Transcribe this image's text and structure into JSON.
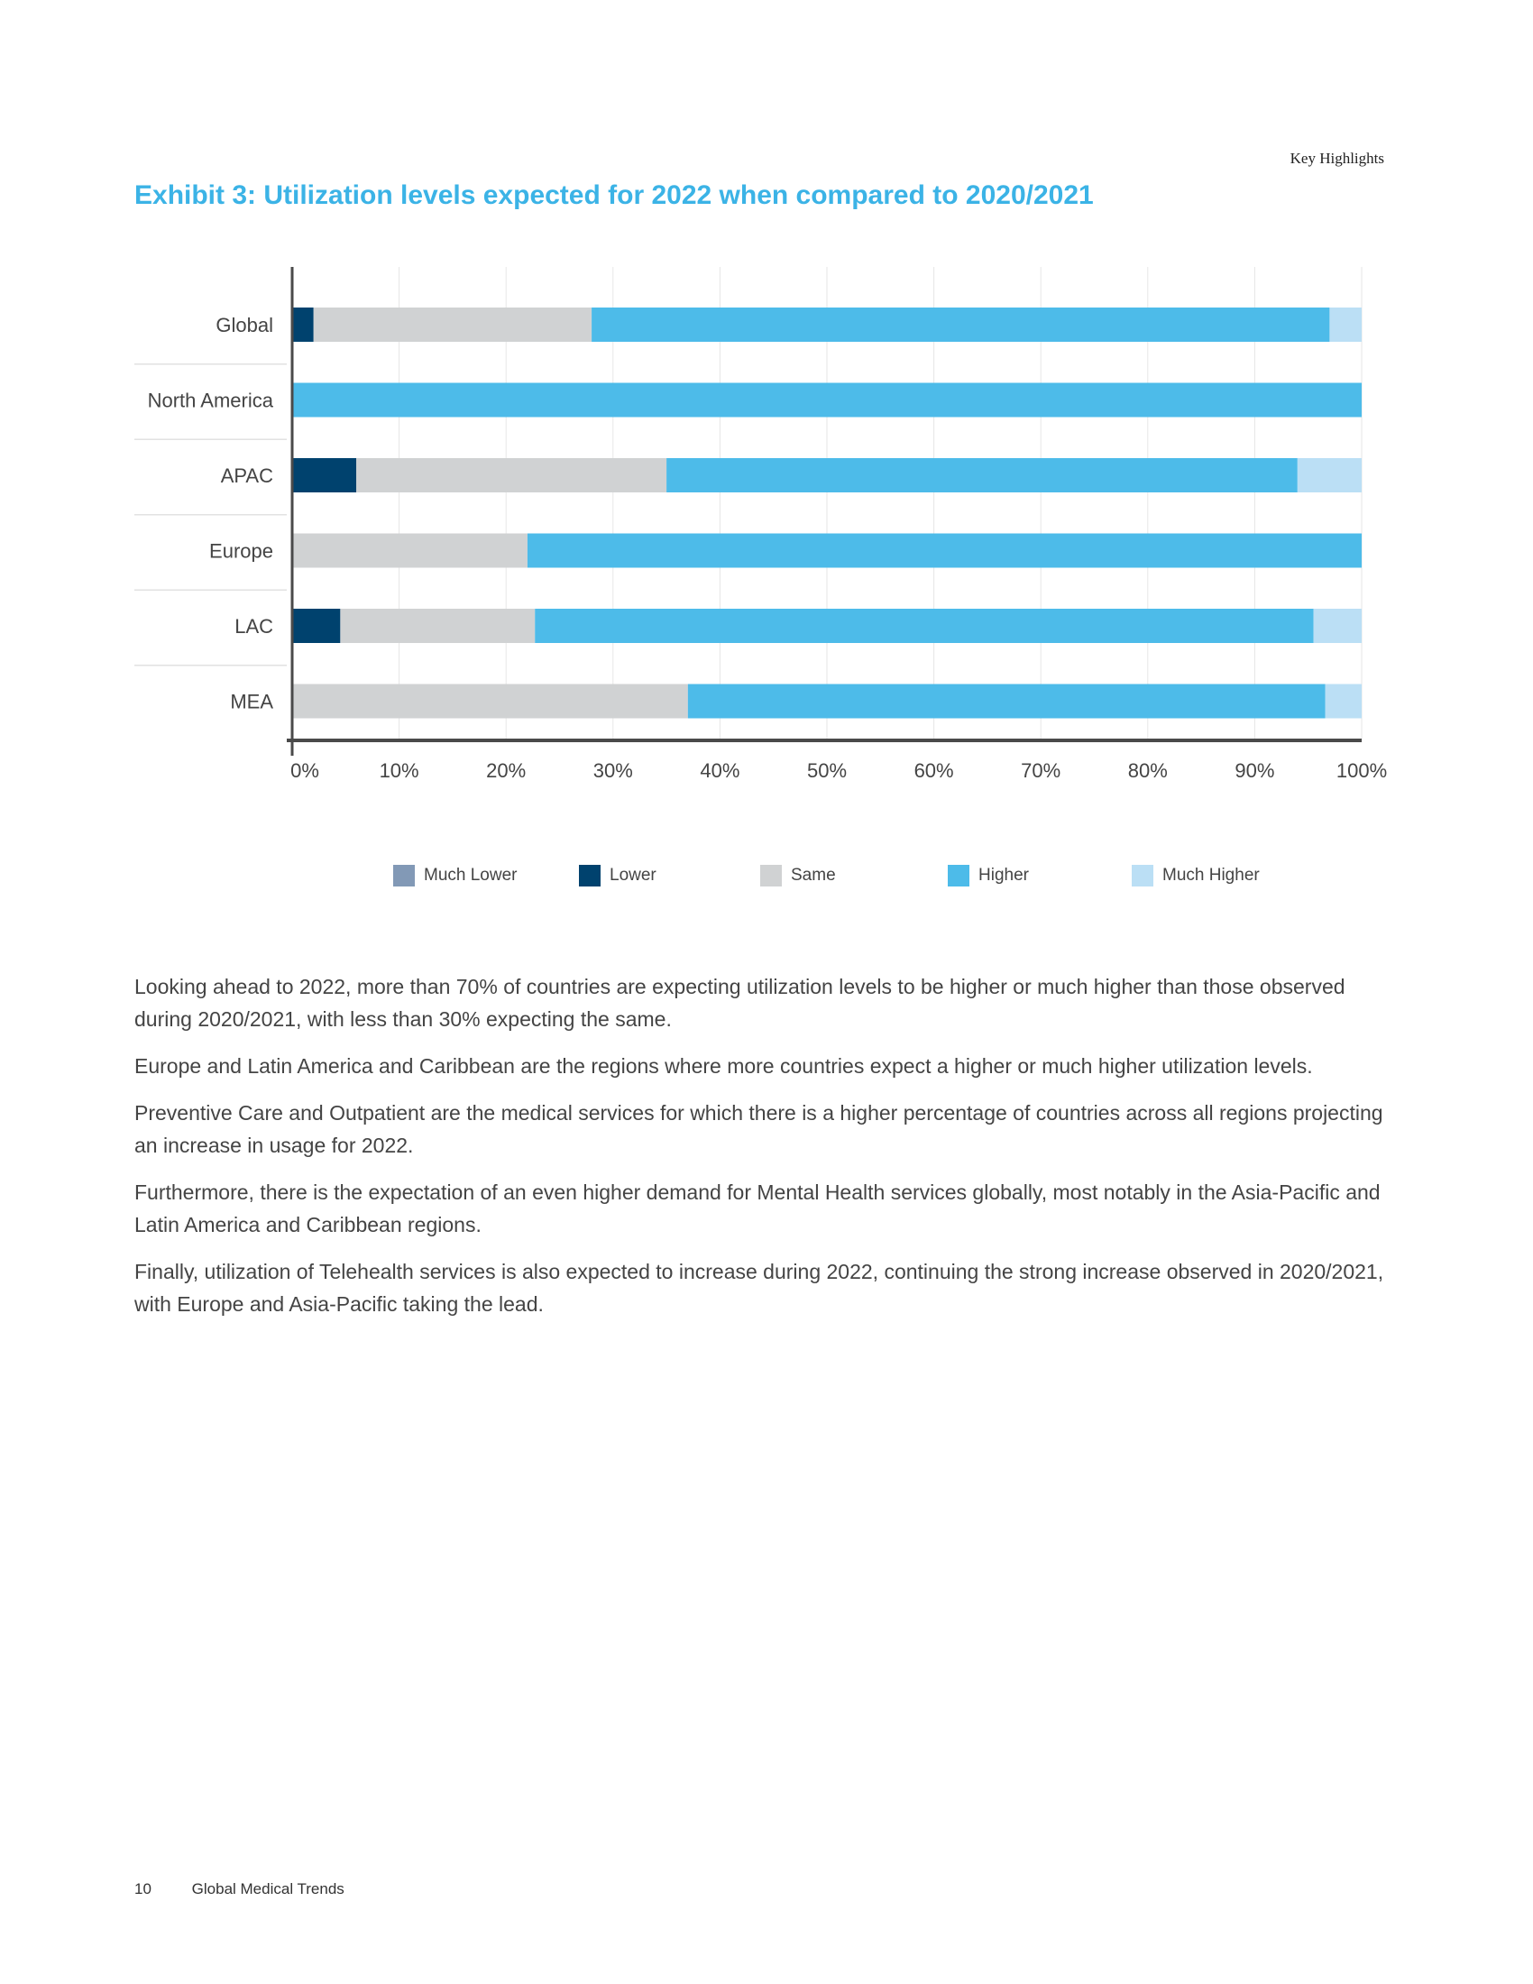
{
  "header": {
    "section": "Key Highlights",
    "title": "Exhibit 3: Utilization levels expected for 2022 when compared to 2020/2021"
  },
  "chart_data": {
    "type": "bar",
    "orientation": "horizontal",
    "stacked": true,
    "categories": [
      "Global",
      "North America",
      "APAC",
      "Europe",
      "LAC",
      "MEA"
    ],
    "xlim": [
      0,
      100
    ],
    "x_ticks": [
      "0%",
      "10%",
      "20%",
      "30%",
      "40%",
      "50%",
      "60%",
      "70%",
      "80%",
      "90%",
      "100%"
    ],
    "grid": "vertical",
    "legend_position": "bottom",
    "series": [
      {
        "name": "Much Lower",
        "color": "#8299b6",
        "values": [
          0,
          0,
          0,
          0,
          0,
          0
        ]
      },
      {
        "name": "Lower",
        "color": "#00426e",
        "values": [
          2,
          0,
          6,
          0,
          4.5,
          0
        ]
      },
      {
        "name": "Same",
        "color": "#d0d2d3",
        "values": [
          26,
          0,
          29,
          22,
          18.2,
          37
        ]
      },
      {
        "name": "Higher",
        "color": "#4dbbe9",
        "values": [
          69,
          100,
          59,
          78,
          72.8,
          59.6
        ]
      },
      {
        "name": "Much Higher",
        "color": "#bbdff5",
        "values": [
          3,
          0,
          6,
          0,
          4.5,
          3.4
        ]
      }
    ]
  },
  "paragraphs": [
    "Looking ahead to 2022, more than 70% of countries are expecting utilization levels to be higher or much higher than those observed during 2020/2021, with less than 30% expecting the same.",
    "Europe and Latin America and Caribbean are the regions where more countries expect a higher or much higher utilization levels.",
    "Preventive Care and Outpatient are the medical services for which there is a higher percentage of countries across all regions projecting an increase in usage for 2022.",
    "Furthermore, there is the expectation of an even higher demand for Mental Health services globally, most notably in the Asia-Pacific and Latin America and Caribbean regions.",
    "Finally, utilization of Telehealth services is also expected to increase during 2022, continuing the strong increase observed in 2020/2021, with Europe and Asia-Pacific taking the lead."
  ],
  "footer": {
    "page_number": "10",
    "publication": "Global Medical Trends"
  }
}
